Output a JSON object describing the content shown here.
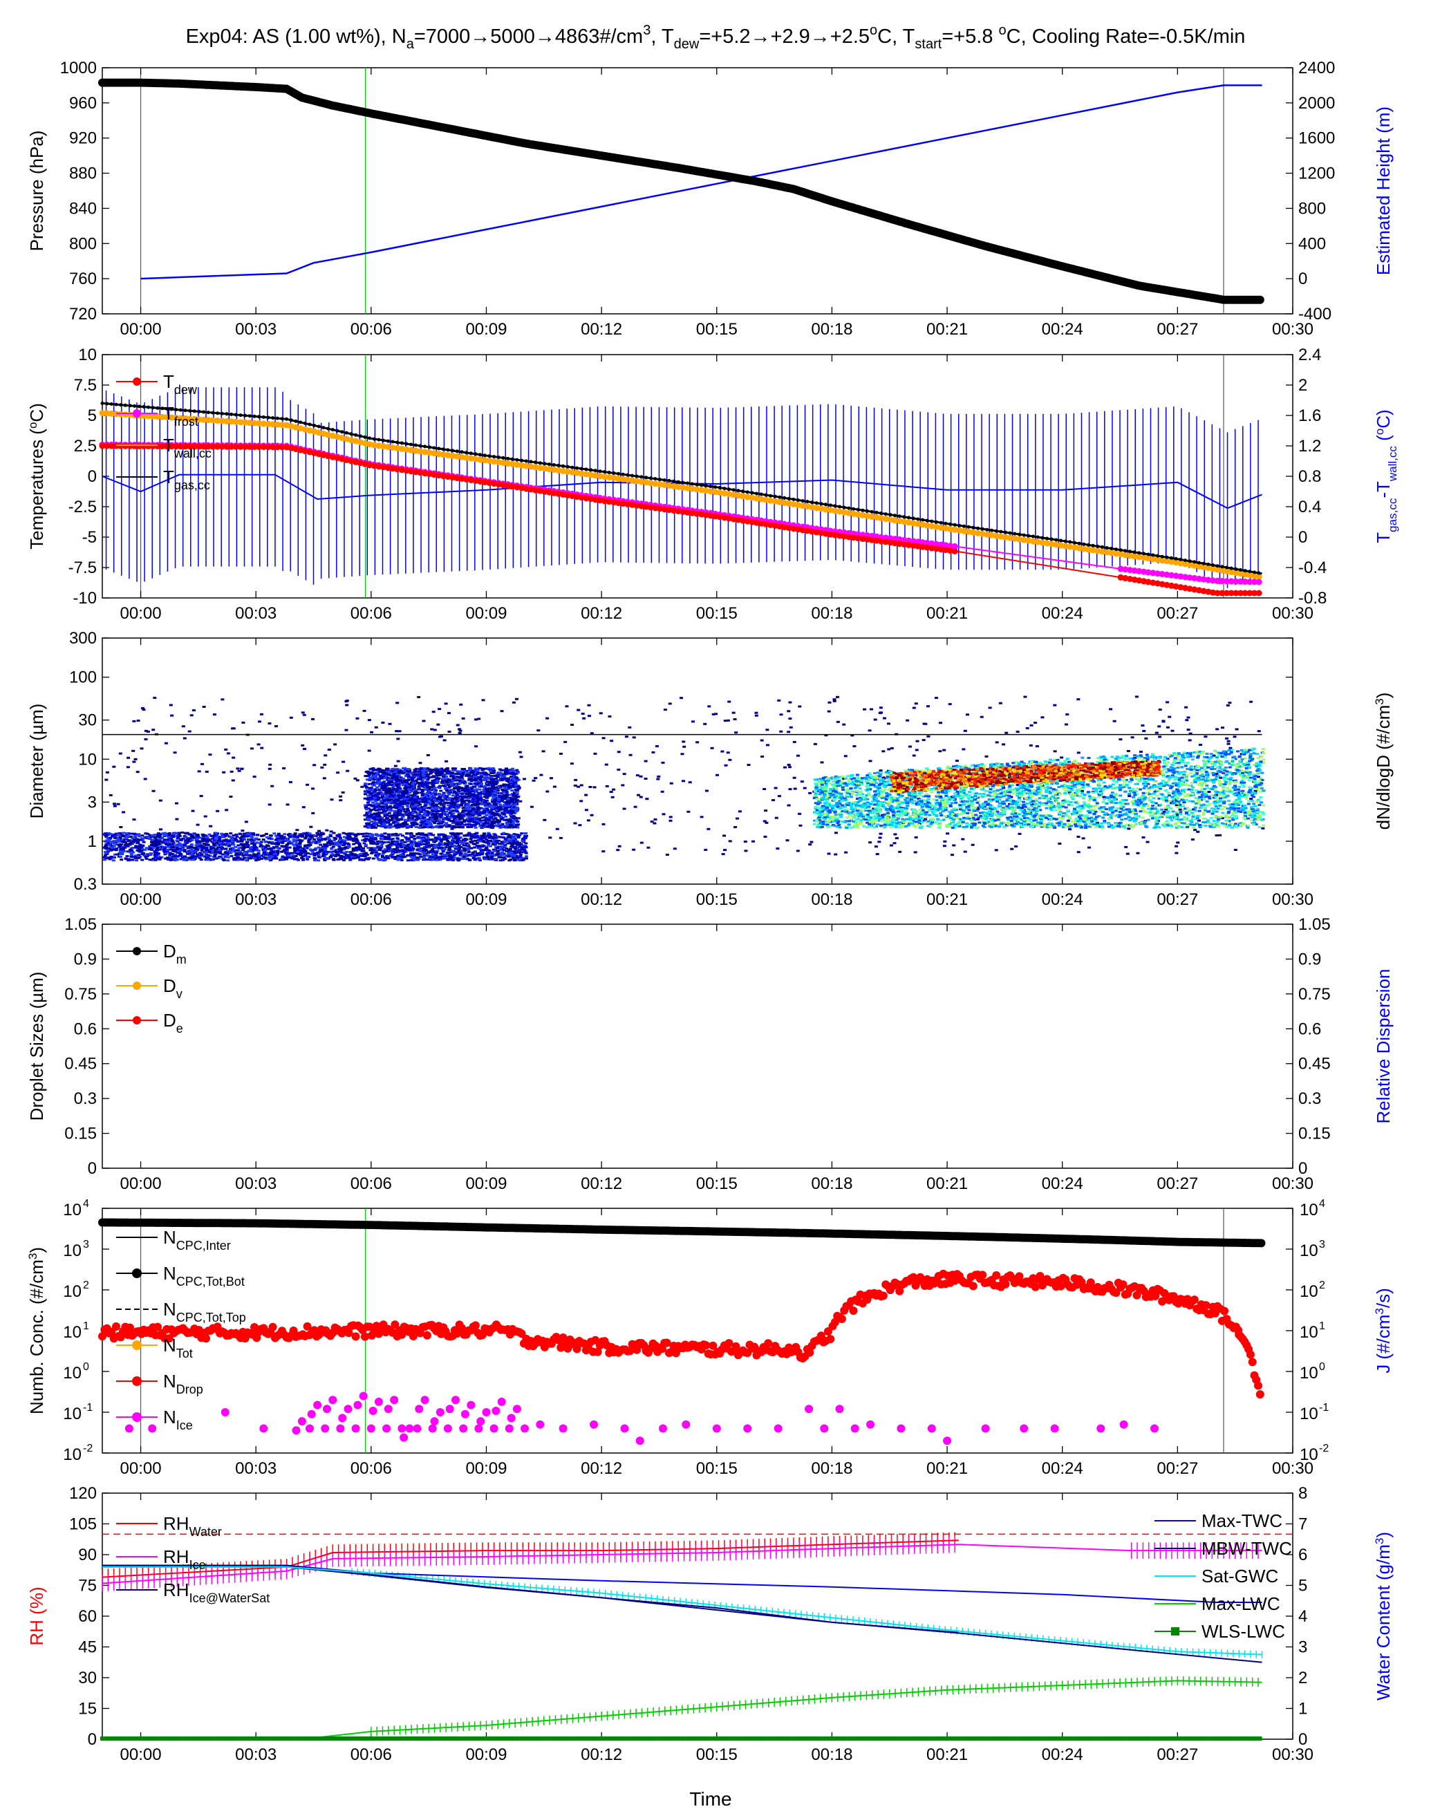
{
  "figure": {
    "title_parts": [
      "Exp04:  AS (1.00 wt%),  N",
      "a",
      "=7000→5000→4863#/cm",
      "3",
      ",  T",
      "dew",
      "=+5.2→+2.9→+2.5",
      "o",
      "C,  T",
      "start",
      "=+5.8 ",
      "o",
      "C,  Cooling Rate=-0.5K/min"
    ],
    "xlabel": "Time",
    "time_ticks": [
      "00:00",
      "00:03",
      "00:06",
      "00:09",
      "00:12",
      "00:15",
      "00:18",
      "00:21",
      "00:24",
      "00:27",
      "00:30"
    ],
    "time_tick_minutes": [
      0,
      3,
      6,
      9,
      12,
      15,
      18,
      21,
      24,
      27,
      30
    ],
    "xlim_minutes": [
      -1,
      30
    ],
    "green_marker_minute": 5.85,
    "gray_marker_minutes": [
      0,
      28.2
    ],
    "colors": {
      "black": "#000000",
      "blue": "#0000ff",
      "red": "#ff0000",
      "magenta": "#ff00ff",
      "orange": "#ffa500",
      "green": "#00cc00",
      "cyan": "#00ffff",
      "navy": "#00008b",
      "lime": "#00dd00"
    }
  },
  "chart_data": [
    {
      "id": "pressure",
      "type": "line",
      "ylabel_left": "Pressure (hPa)",
      "ylabel_right": "Estimated Height (m)",
      "yticks_left": [
        "720",
        "760",
        "800",
        "840",
        "880",
        "920",
        "960",
        "1000"
      ],
      "ylim_left": [
        720,
        1000
      ],
      "yticks_right": [
        "-400",
        "0",
        "400",
        "800",
        "1200",
        "1600",
        "2000",
        "2400"
      ],
      "ylim_right": [
        -400,
        2400
      ],
      "series": [
        {
          "axis": "left",
          "color": "#000000",
          "x": [
            -1,
            0,
            1,
            2,
            3,
            3.8,
            4.2,
            5,
            6,
            8,
            10,
            12,
            14,
            16,
            17,
            18,
            20,
            22,
            24,
            26,
            28.2,
            29.2
          ],
          "y": [
            983,
            983,
            982,
            980,
            978,
            976,
            966,
            957,
            948,
            931,
            914,
            900,
            886,
            871,
            862,
            848,
            822,
            797,
            774,
            752,
            736,
            736
          ]
        },
        {
          "axis": "right",
          "color": "#0000ff",
          "x": [
            0,
            3.8,
            4.5,
            6,
            9,
            12,
            15,
            18,
            21,
            24,
            27,
            28.2,
            29.2
          ],
          "y": [
            0,
            60,
            180,
            300,
            560,
            820,
            1080,
            1340,
            1600,
            1860,
            2120,
            2200,
            2200
          ]
        }
      ]
    },
    {
      "id": "temperatures",
      "type": "line",
      "ylabel_left": "Temperatures (oC)",
      "ylabel_right": "Tgas,cc-Twall,cc (oC)",
      "yticks_left": [
        "-10",
        "-7.5",
        "-5",
        "-2.5",
        "0",
        "2.5",
        "5",
        "7.5",
        "10"
      ],
      "ylim_left": [
        -10,
        10
      ],
      "yticks_right": [
        "-0.8",
        "-0.4",
        "0",
        "0.4",
        "0.8",
        "1.2",
        "1.6",
        "2",
        "2.4"
      ],
      "ylim_right": [
        -0.8,
        2.4
      ],
      "legend": [
        "T",
        "dew",
        "T",
        "frost",
        "T",
        "wall,cc",
        "T",
        "gas,cc"
      ],
      "series": [
        {
          "name": "Tdew",
          "color": "#ff0000",
          "x": [
            -1,
            3.8,
            6,
            9,
            12,
            15,
            18,
            21.3,
            25.5,
            28,
            29.2
          ],
          "y": [
            2.5,
            2.4,
            0.9,
            -0.5,
            -2.0,
            -3.3,
            -4.8,
            -6.2,
            -8.3,
            -9.6,
            -9.6
          ]
        },
        {
          "name": "Tfrost",
          "color": "#ff00ff",
          "x": [
            -1,
            3.8,
            6,
            9,
            12,
            15,
            18,
            21.3,
            25.5,
            28,
            29.2
          ],
          "y": [
            2.6,
            2.5,
            1.0,
            -0.4,
            -1.8,
            -3.1,
            -4.5,
            -5.8,
            -7.6,
            -8.6,
            -8.7
          ]
        },
        {
          "name": "Twall,cc",
          "color": "#ffa500",
          "x": [
            -1,
            3.8,
            6,
            9,
            12,
            15,
            18,
            21,
            24,
            27,
            29.2
          ],
          "y": [
            5.2,
            4.2,
            2.6,
            1.3,
            0,
            -1.3,
            -2.8,
            -4.3,
            -5.7,
            -7.1,
            -8.3
          ]
        },
        {
          "name": "Tgas,cc",
          "color": "#000000",
          "x": [
            -1,
            3.8,
            6,
            9,
            12,
            15,
            18,
            21,
            24,
            27,
            29.2
          ],
          "y": [
            6.0,
            4.7,
            3.1,
            1.7,
            0.4,
            -0.9,
            -2.4,
            -3.9,
            -5.3,
            -6.8,
            -8.0
          ]
        },
        {
          "name": "Tgas,cc-Twall,cc",
          "axis": "right",
          "color": "#0000ff",
          "x": [
            -1,
            0,
            1,
            3.5,
            4.6,
            6,
            9,
            12,
            15,
            18,
            21,
            24,
            27,
            28.3,
            29.2
          ],
          "y": [
            0.8,
            0.6,
            0.82,
            0.82,
            0.5,
            0.55,
            0.62,
            0.72,
            0.7,
            0.75,
            0.62,
            0.62,
            0.72,
            0.38,
            0.56
          ]
        }
      ]
    },
    {
      "id": "size-distribution",
      "type": "heatmap",
      "ylabel_left": "Diameter (µm)",
      "ylabel_right": "dN/dlogD (#/cm3)",
      "yticks_left": [
        "0.3",
        "1",
        "3",
        "10",
        "30",
        "100",
        "300"
      ],
      "yscale": "log",
      "ylim_left": [
        0.3,
        300
      ],
      "cutoff_diameter": 20,
      "regions": [
        {
          "x": [
            -1,
            10
          ],
          "d": [
            0.6,
            1.3
          ],
          "level": "low"
        },
        {
          "x": [
            5.8,
            9.8
          ],
          "d": [
            1.5,
            8
          ],
          "level": "low"
        },
        {
          "x": [
            17.5,
            29.2
          ],
          "d": [
            1.5,
            14
          ],
          "level": "medium"
        },
        {
          "x": [
            19.5,
            26.5
          ],
          "d": [
            4,
            10
          ],
          "level": "high"
        }
      ]
    },
    {
      "id": "droplet-sizes",
      "type": "line",
      "ylabel_left": "Droplet Sizes (µm)",
      "ylabel_right": "Relative Dispersion",
      "yticks_left": [
        "0",
        "0.15",
        "0.3",
        "0.45",
        "0.6",
        "0.75",
        "0.9",
        "1.05"
      ],
      "ylim_left": [
        0,
        1.05
      ],
      "yticks_right": [
        "0",
        "0.15",
        "0.3",
        "0.45",
        "0.6",
        "0.75",
        "0.9",
        "1.05"
      ],
      "legend": [
        "D",
        "m",
        "D",
        "v",
        "D",
        "e"
      ],
      "series": []
    },
    {
      "id": "number-concentration",
      "type": "scatter",
      "ylabel_left": "Numb. Conc. (#/cm3)",
      "ylabel_right": "J (#/cm3/s)",
      "yscale": "log",
      "ylim_left": [
        0.01,
        10000
      ],
      "ytick_mantissa": "10",
      "ytick_exponents": [
        "-2",
        "-1",
        "0",
        "1",
        "2",
        "3",
        "4"
      ],
      "legend": [
        "N",
        "CPC,Inter",
        "N",
        "CPC,Tot,Bot",
        "N",
        "CPC,Tot,Top",
        "N",
        "Tot",
        "N",
        "Drop",
        "N",
        "Ice"
      ],
      "series": [
        {
          "name": "NCPC,Tot,Bot",
          "color": "#000000",
          "x": [
            -1,
            3,
            6,
            9,
            12,
            15,
            18,
            21,
            24,
            27,
            29.2
          ],
          "y": [
            4500,
            4300,
            3900,
            3400,
            3000,
            2700,
            2400,
            2100,
            1800,
            1500,
            1400
          ]
        },
        {
          "name": "NDrop",
          "color": "#ff0000",
          "x": [
            -1,
            3,
            6,
            9.5,
            10,
            12,
            15,
            17,
            17.4,
            18,
            19,
            20,
            21,
            24,
            27,
            28,
            28.6,
            29,
            29.2
          ],
          "y": [
            9,
            9,
            10,
            10,
            6,
            4,
            3.5,
            3.5,
            2.5,
            9,
            70,
            150,
            180,
            150,
            60,
            30,
            8,
            0.8,
            0.1
          ]
        },
        {
          "name": "NIce",
          "color": "#ff00ff",
          "x": [
            -0.3,
            0.3,
            2.2,
            3.2,
            4.2,
            4.6,
            5.0,
            5.4,
            5.8,
            6.2,
            6.6,
            7.0,
            7.4,
            7.8,
            8.2,
            8.6,
            9.0,
            9.4,
            9.8,
            10.4,
            11.0,
            11.8,
            12.6,
            13.0,
            13.6,
            14.2,
            15.0,
            15.8,
            16.6,
            17.4,
            17.8,
            18.2,
            18.6,
            19.0,
            19.8,
            20.6,
            21.0,
            22.0,
            23.0,
            23.8,
            25.0,
            25.6,
            26.4
          ],
          "y": [
            0.04,
            0.04,
            0.1,
            0.04,
            0.06,
            0.15,
            0.2,
            0.12,
            0.25,
            0.18,
            0.2,
            0.04,
            0.2,
            0.1,
            0.2,
            0.15,
            0.1,
            0.18,
            0.12,
            0.05,
            0.04,
            0.05,
            0.04,
            0.02,
            0.04,
            0.05,
            0.04,
            0.04,
            0.04,
            0.12,
            0.04,
            0.12,
            0.04,
            0.05,
            0.04,
            0.04,
            0.02,
            0.04,
            0.04,
            0.04,
            0.04,
            0.05,
            0.04
          ]
        }
      ]
    },
    {
      "id": "humidity-water",
      "type": "line",
      "ylabel_left": "RH (%)",
      "ylabel_right": "Water Content (g/m3)",
      "yticks_left": [
        "0",
        "15",
        "30",
        "45",
        "60",
        "75",
        "90",
        "105",
        "120"
      ],
      "ylim_left": [
        0,
        120
      ],
      "yticks_right": [
        "0",
        "1",
        "2",
        "3",
        "4",
        "5",
        "6",
        "7",
        "8"
      ],
      "ylim_right": [
        0,
        8
      ],
      "legend_left": [
        "RH",
        "Water",
        "RH",
        "Ice",
        "RH",
        "Ice@WaterSat"
      ],
      "legend_right": [
        "Max-TWC",
        "MBW-TWC",
        "Sat-GWC",
        "Max-LWC",
        "WLS-LWC"
      ],
      "reference_line_rh": 100,
      "series": [
        {
          "name": "RHWater",
          "axis": "left",
          "color": "#ff0000",
          "x": [
            -1,
            3.8,
            5,
            9,
            12,
            15,
            18,
            21.3
          ],
          "y": [
            79,
            84,
            91,
            92,
            92,
            93,
            95,
            97
          ]
        },
        {
          "name": "RHIce",
          "axis": "left",
          "color": "#ff00ff",
          "x": [
            -1,
            3.8,
            5,
            9,
            12,
            15,
            18,
            21.3,
            25.8,
            29.2
          ],
          "y": [
            76,
            82,
            88,
            89,
            90,
            91,
            93,
            95,
            92,
            92
          ]
        },
        {
          "name": "RHIce@WaterSat",
          "axis": "left",
          "color": "#000080",
          "x": [
            -1,
            3.8,
            6,
            9,
            12,
            15,
            18,
            21.3
          ],
          "y": [
            84,
            84,
            80,
            74,
            69,
            64,
            57,
            52
          ]
        },
        {
          "name": "Max-TWC",
          "axis": "right",
          "color": "#0000ff",
          "x": [
            -1,
            3.8,
            6,
            12,
            18,
            24,
            28,
            29.2
          ],
          "y": [
            5.65,
            5.65,
            5.4,
            5.15,
            4.95,
            4.7,
            4.45,
            4.45
          ]
        },
        {
          "name": "MBW-TWC",
          "axis": "right",
          "color": "#00008b",
          "x": [
            -1,
            3.8,
            6,
            9,
            12,
            15,
            18,
            21.3,
            25.8,
            29.2
          ],
          "y": [
            5.65,
            5.65,
            5.35,
            4.95,
            4.6,
            4.2,
            3.8,
            3.45,
            2.9,
            2.5
          ]
        },
        {
          "name": "Sat-GWC",
          "axis": "right",
          "color": "#00e5ee",
          "x": [
            -1,
            3.8,
            6,
            9,
            12,
            15,
            18,
            21,
            24,
            27,
            29.2
          ],
          "y": [
            5.6,
            5.6,
            5.4,
            5.05,
            4.75,
            4.35,
            3.95,
            3.55,
            3.2,
            2.85,
            2.75
          ]
        },
        {
          "name": "Max-LWC",
          "axis": "right",
          "color": "#00cc00",
          "x": [
            -1,
            4.2,
            6,
            9,
            12,
            15,
            18,
            21,
            24,
            27,
            29.2
          ],
          "y": [
            0,
            0,
            0.25,
            0.45,
            0.75,
            1.05,
            1.35,
            1.6,
            1.75,
            1.9,
            1.85
          ]
        },
        {
          "name": "WLS-LWC",
          "axis": "right",
          "color": "#008800",
          "x": [
            -1,
            29.2
          ],
          "y": [
            0.02,
            0.02
          ]
        }
      ]
    }
  ]
}
